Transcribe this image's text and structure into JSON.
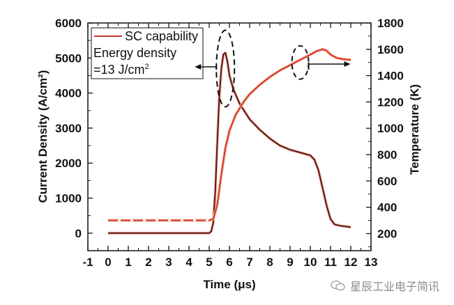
{
  "chart_data": {
    "type": "line",
    "title": "",
    "xlabel": "Time (μs)",
    "ylabel": "Current Density (A/cm²)",
    "ylabel_right": "Temperature (K)",
    "xlim": [
      -1,
      13
    ],
    "ylim": [
      -500,
      6000
    ],
    "ylim_right": [
      70,
      1800
    ],
    "x_ticks": [
      "-1",
      "0",
      "1",
      "2",
      "3",
      "4",
      "5",
      "6",
      "7",
      "8",
      "9",
      "10",
      "11",
      "12",
      "13"
    ],
    "y_ticks": [
      "0",
      "1000",
      "2000",
      "3000",
      "4000",
      "5000",
      "6000"
    ],
    "y_ticks_right": [
      "200",
      "400",
      "600",
      "800",
      "1000",
      "1200",
      "1400",
      "1600",
      "1800"
    ],
    "grid": false,
    "legend": {
      "position": "top-left",
      "entries": [
        {
          "name": "SC capability",
          "color": "#c0392b"
        }
      ],
      "annotation_line1": "Energy density",
      "annotation_line2": "=13 J/cm",
      "annotation_sup": "2"
    },
    "series": [
      {
        "name": "Current Density",
        "axis": "left",
        "color": "#5a1a14",
        "x": [
          0,
          1,
          2,
          3,
          4,
          5,
          5.1,
          5.2,
          5.3,
          5.4,
          5.5,
          5.6,
          5.7,
          5.8,
          5.9,
          6.0,
          6.2,
          6.5,
          7.0,
          7.5,
          8.0,
          8.5,
          9.0,
          9.5,
          10.0,
          10.2,
          10.4,
          10.6,
          10.8,
          11.0,
          11.2,
          11.5,
          12.0
        ],
        "y": [
          0,
          0,
          0,
          0,
          0,
          0,
          50,
          300,
          1200,
          2600,
          3900,
          4700,
          5100,
          5150,
          4900,
          4500,
          4100,
          3700,
          3250,
          2950,
          2700,
          2500,
          2380,
          2300,
          2220,
          2100,
          1800,
          1300,
          800,
          400,
          250,
          210,
          170
        ]
      },
      {
        "name": "Temperature",
        "axis": "right",
        "color": "#d63a22",
        "x": [
          0,
          1,
          2,
          3,
          4,
          5,
          5.2,
          5.4,
          5.6,
          5.8,
          6.0,
          6.3,
          6.7,
          7.0,
          7.5,
          8.0,
          8.5,
          9.0,
          9.5,
          10.0,
          10.3,
          10.6,
          10.8,
          11.0,
          11.3,
          11.6,
          12.0
        ],
        "y": [
          300,
          300,
          300,
          300,
          300,
          300,
          310,
          420,
          650,
          850,
          980,
          1100,
          1200,
          1260,
          1330,
          1390,
          1440,
          1480,
          1520,
          1560,
          1585,
          1600,
          1590,
          1560,
          1535,
          1525,
          1520
        ]
      }
    ],
    "annotations": [
      {
        "type": "dashed-ellipse",
        "target": "Current Density peak",
        "arrow_direction": "left",
        "center_x": 5.8,
        "center_y": 4700
      },
      {
        "type": "dashed-ellipse",
        "target": "Temperature curve",
        "arrow_direction": "right",
        "center_x": 9.5,
        "center_y": 1500
      }
    ]
  },
  "watermark": {
    "text": "星辰工业电子简讯",
    "icon": "wechat-icon"
  }
}
